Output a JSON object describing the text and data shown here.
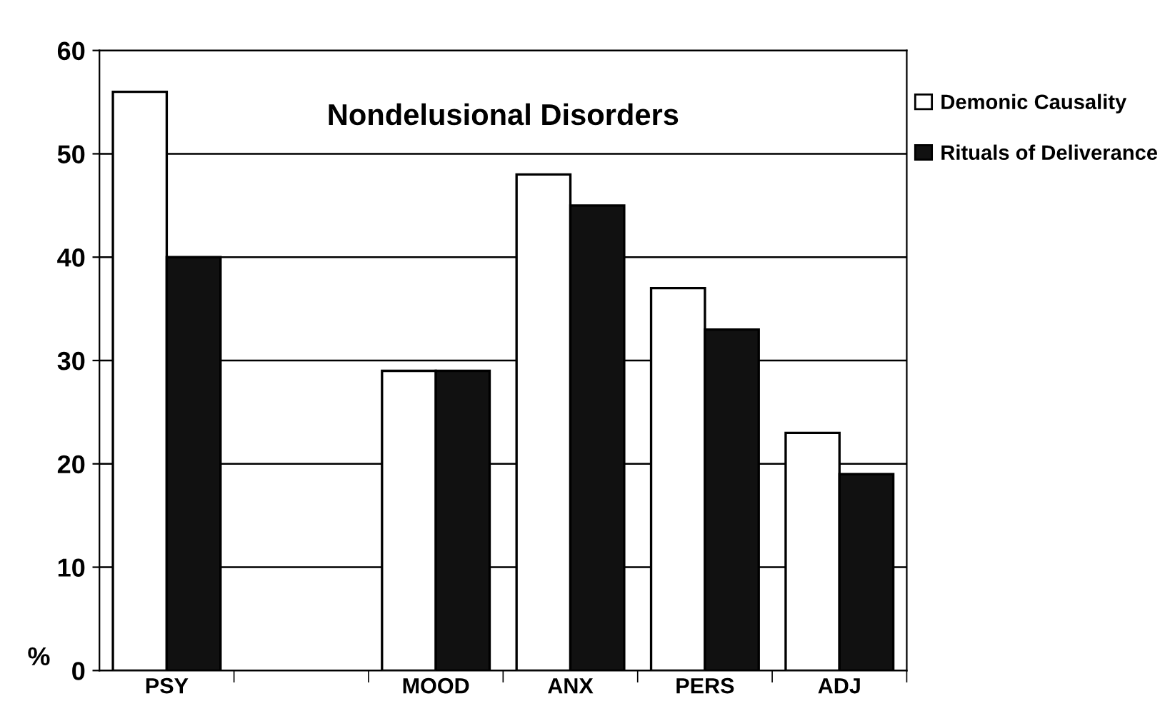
{
  "chart_data": {
    "type": "bar",
    "title": "Nondelusional Disorders",
    "ylabel": "%",
    "categories": [
      "PSY",
      null,
      "MOOD",
      "ANX",
      "PERS",
      "ADJ"
    ],
    "series": [
      {
        "name": "Demonic Causality",
        "color": "#ffffff",
        "values": [
          56,
          null,
          29,
          48,
          37,
          23
        ]
      },
      {
        "name": "Rituals of Deliverance",
        "color": "#111111",
        "values": [
          40,
          null,
          29,
          45,
          33,
          19
        ]
      }
    ],
    "ylim": [
      0,
      60
    ],
    "yticks": [
      0,
      10,
      20,
      30,
      40,
      50,
      60
    ],
    "grid": "y",
    "legend": "right"
  }
}
